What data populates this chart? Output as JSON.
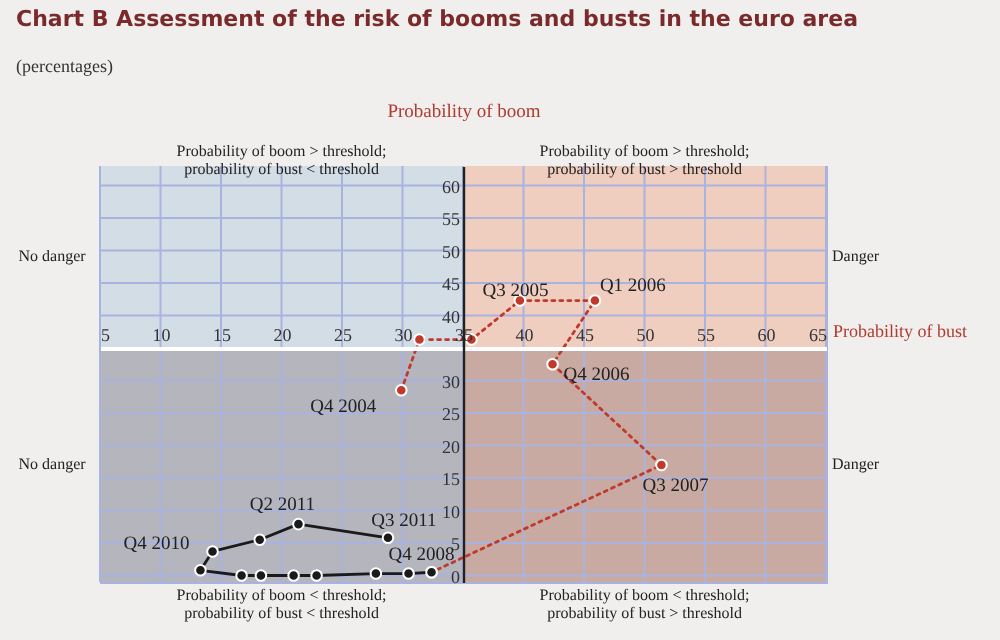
{
  "chart_data": {
    "type": "line",
    "title": "Chart B Assessment of the risk of booms and busts in the euro area",
    "subtitle": "(percentages)",
    "xlabel": "Probability of bust",
    "ylabel": "Probability of boom",
    "xlim": [
      5,
      65
    ],
    "ylim": [
      -1,
      63
    ],
    "xticks": [
      5,
      10,
      15,
      20,
      25,
      30,
      35,
      40,
      45,
      50,
      55,
      60,
      65
    ],
    "yticks": [
      0,
      5,
      10,
      15,
      20,
      25,
      30,
      40,
      45,
      50,
      55,
      60
    ],
    "grid": true,
    "marker": "circle",
    "series": [
      {
        "color": "#c0392b",
        "line_style": "dotted",
        "x": [
          29.9,
          31.4,
          35.7,
          39.7,
          45.9,
          42.4,
          51.4,
          32.4
        ],
        "values": [
          28.5,
          36.3,
          36.3,
          42.3,
          42.3,
          32.5,
          17,
          0.5
        ]
      },
      {
        "color": "#1a1a1a",
        "line_style": "solid",
        "x": [
          32.4,
          30.5,
          27.8,
          22.9,
          21,
          18.3,
          16.7,
          13.3,
          14.3,
          18.2,
          21.4,
          28.8
        ],
        "values": [
          0.5,
          0.3,
          0.3,
          0,
          0,
          0,
          0,
          0.8,
          3.7,
          5.5,
          7.9,
          5.8
        ]
      }
    ],
    "bands": [
      {
        "axis": "x",
        "from": 5,
        "to": 35,
        "color": "#d3dde6"
      },
      {
        "axis": "x",
        "from": 35,
        "to": 65,
        "color": "#efcdbf"
      },
      {
        "axis": "y",
        "from": -1,
        "to": 35,
        "color": "#6e5a60"
      }
    ],
    "annotations": [
      "Probability of boom > threshold;\nprobability of bust < threshold",
      "Probability of boom > threshold;\nprobability of bust > threshold",
      "Probability of boom < threshold;\nprobability of bust < threshold",
      "Probability of boom < threshold;\nprobability of bust > threshold",
      "No danger",
      "No danger",
      "Danger",
      "Danger",
      {
        "text": "Q4 2004",
        "x": 29.9,
        "y": 28.5
      },
      {
        "text": "Q3 2005",
        "x": 35.7,
        "y": 36.3
      },
      {
        "text": "Q1 2006",
        "x": 45.9,
        "y": 42.3
      },
      {
        "text": "Q4 2006",
        "x": 42.4,
        "y": 32.5
      },
      {
        "text": "Q3 2007",
        "x": 51.4,
        "y": 17
      },
      {
        "text": "Q4 2008",
        "x": 32.4,
        "y": 0.5
      },
      {
        "text": "Q4 2010",
        "x": 14.3,
        "y": 3.7
      },
      {
        "text": "Q2 2011",
        "x": 21.4,
        "y": 7.9
      },
      {
        "text": "Q3 2011",
        "x": 28.8,
        "y": 5.8
      }
    ]
  }
}
